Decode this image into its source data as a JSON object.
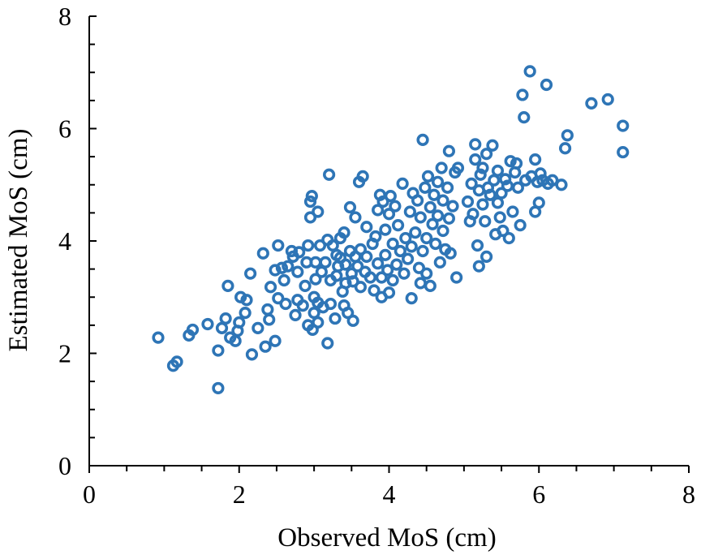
{
  "chart_data": {
    "type": "scatter",
    "title": "",
    "xlabel": "Observed MoS (cm)",
    "ylabel": "Estimated MoS (cm)",
    "xlim": [
      0,
      8
    ],
    "ylim": [
      0,
      8
    ],
    "xticks": [
      "0",
      "2",
      "4",
      "6",
      "8"
    ],
    "yticks": [
      "0",
      "2",
      "4",
      "6",
      "8"
    ],
    "grid": false,
    "legend": "none",
    "marker_color": "#2E75B6",
    "marker": "open-circle",
    "series": [
      {
        "points": [
          [
            0.92,
            2.28
          ],
          [
            1.12,
            1.78
          ],
          [
            1.17,
            1.85
          ],
          [
            1.33,
            2.32
          ],
          [
            1.38,
            2.42
          ],
          [
            1.58,
            2.52
          ],
          [
            1.72,
            1.38
          ],
          [
            1.72,
            2.05
          ],
          [
            1.77,
            2.45
          ],
          [
            1.82,
            2.62
          ],
          [
            1.85,
            3.2
          ],
          [
            1.88,
            2.28
          ],
          [
            1.95,
            2.22
          ],
          [
            1.98,
            2.4
          ],
          [
            2.0,
            2.55
          ],
          [
            2.02,
            3.0
          ],
          [
            2.08,
            2.72
          ],
          [
            2.1,
            2.95
          ],
          [
            2.15,
            3.42
          ],
          [
            2.17,
            1.98
          ],
          [
            2.25,
            2.45
          ],
          [
            2.32,
            3.78
          ],
          [
            2.35,
            2.12
          ],
          [
            2.38,
            2.78
          ],
          [
            2.4,
            2.6
          ],
          [
            2.42,
            3.18
          ],
          [
            2.48,
            2.22
          ],
          [
            2.48,
            3.48
          ],
          [
            2.52,
            2.98
          ],
          [
            2.52,
            3.92
          ],
          [
            2.57,
            3.52
          ],
          [
            2.6,
            3.3
          ],
          [
            2.62,
            2.88
          ],
          [
            2.65,
            3.55
          ],
          [
            2.7,
            3.82
          ],
          [
            2.72,
            3.72
          ],
          [
            2.75,
            2.68
          ],
          [
            2.78,
            2.95
          ],
          [
            2.78,
            3.45
          ],
          [
            2.8,
            3.8
          ],
          [
            2.85,
            2.85
          ],
          [
            2.88,
            3.2
          ],
          [
            2.9,
            3.62
          ],
          [
            2.92,
            2.5
          ],
          [
            2.92,
            3.92
          ],
          [
            2.95,
            4.42
          ],
          [
            2.95,
            4.7
          ],
          [
            2.97,
            4.8
          ],
          [
            2.98,
            2.42
          ],
          [
            3.0,
            2.72
          ],
          [
            3.0,
            3.0
          ],
          [
            3.02,
            3.62
          ],
          [
            3.02,
            3.32
          ],
          [
            3.05,
            4.52
          ],
          [
            3.05,
            2.55
          ],
          [
            3.05,
            2.9
          ],
          [
            3.08,
            3.92
          ],
          [
            3.1,
            3.45
          ],
          [
            3.12,
            2.82
          ],
          [
            3.15,
            3.62
          ],
          [
            3.18,
            4.02
          ],
          [
            3.18,
            2.18
          ],
          [
            3.2,
            5.18
          ],
          [
            3.22,
            3.3
          ],
          [
            3.22,
            2.88
          ],
          [
            3.25,
            3.92
          ],
          [
            3.28,
            2.62
          ],
          [
            3.3,
            3.75
          ],
          [
            3.3,
            3.38
          ],
          [
            3.32,
            3.55
          ],
          [
            3.35,
            4.05
          ],
          [
            3.35,
            3.7
          ],
          [
            3.38,
            3.1
          ],
          [
            3.4,
            2.85
          ],
          [
            3.4,
            4.15
          ],
          [
            3.42,
            3.25
          ],
          [
            3.42,
            3.58
          ],
          [
            3.45,
            2.72
          ],
          [
            3.48,
            3.82
          ],
          [
            3.48,
            4.6
          ],
          [
            3.5,
            3.42
          ],
          [
            3.52,
            2.58
          ],
          [
            3.52,
            3.28
          ],
          [
            3.55,
            4.42
          ],
          [
            3.55,
            3.72
          ],
          [
            3.58,
            3.55
          ],
          [
            3.6,
            5.05
          ],
          [
            3.62,
            3.85
          ],
          [
            3.62,
            3.18
          ],
          [
            3.65,
            5.15
          ],
          [
            3.68,
            3.45
          ],
          [
            3.7,
            3.72
          ],
          [
            3.7,
            4.25
          ],
          [
            3.75,
            3.35
          ],
          [
            3.78,
            3.95
          ],
          [
            3.8,
            3.12
          ],
          [
            3.82,
            4.08
          ],
          [
            3.85,
            3.6
          ],
          [
            3.85,
            4.55
          ],
          [
            3.88,
            4.82
          ],
          [
            3.9,
            3.0
          ],
          [
            3.9,
            3.35
          ],
          [
            3.92,
            4.7
          ],
          [
            3.95,
            3.75
          ],
          [
            3.95,
            4.2
          ],
          [
            3.98,
            3.48
          ],
          [
            4.0,
            4.48
          ],
          [
            4.0,
            3.08
          ],
          [
            4.02,
            4.8
          ],
          [
            4.05,
            3.95
          ],
          [
            4.05,
            3.3
          ],
          [
            4.08,
            4.62
          ],
          [
            4.1,
            3.58
          ],
          [
            4.12,
            4.28
          ],
          [
            4.15,
            3.82
          ],
          [
            4.18,
            5.02
          ],
          [
            4.2,
            3.42
          ],
          [
            4.22,
            4.05
          ],
          [
            4.25,
            3.68
          ],
          [
            4.28,
            4.52
          ],
          [
            4.3,
            2.98
          ],
          [
            4.3,
            3.9
          ],
          [
            4.32,
            4.85
          ],
          [
            4.35,
            4.15
          ],
          [
            4.38,
            4.72
          ],
          [
            4.4,
            3.52
          ],
          [
            4.42,
            4.42
          ],
          [
            4.42,
            3.25
          ],
          [
            4.45,
            5.8
          ],
          [
            4.45,
            3.82
          ],
          [
            4.48,
            4.95
          ],
          [
            4.5,
            4.05
          ],
          [
            4.5,
            3.42
          ],
          [
            4.52,
            5.15
          ],
          [
            4.55,
            4.6
          ],
          [
            4.55,
            3.2
          ],
          [
            4.58,
            4.3
          ],
          [
            4.6,
            4.82
          ],
          [
            4.62,
            3.95
          ],
          [
            4.65,
            4.45
          ],
          [
            4.65,
            5.05
          ],
          [
            4.68,
            3.62
          ],
          [
            4.7,
            5.3
          ],
          [
            4.72,
            4.18
          ],
          [
            4.72,
            4.72
          ],
          [
            4.75,
            3.85
          ],
          [
            4.78,
            4.95
          ],
          [
            4.8,
            4.4
          ],
          [
            4.8,
            5.6
          ],
          [
            4.82,
            3.78
          ],
          [
            4.85,
            4.62
          ],
          [
            4.88,
            5.22
          ],
          [
            4.9,
            3.35
          ],
          [
            4.92,
            5.3
          ],
          [
            5.05,
            4.7
          ],
          [
            5.08,
            4.35
          ],
          [
            5.1,
            5.02
          ],
          [
            5.12,
            4.48
          ],
          [
            5.15,
            5.72
          ],
          [
            5.15,
            5.45
          ],
          [
            5.18,
            3.92
          ],
          [
            5.2,
            4.9
          ],
          [
            5.2,
            3.55
          ],
          [
            5.22,
            5.18
          ],
          [
            5.25,
            4.65
          ],
          [
            5.25,
            5.3
          ],
          [
            5.28,
            4.35
          ],
          [
            5.3,
            5.55
          ],
          [
            5.3,
            3.72
          ],
          [
            5.32,
            4.95
          ],
          [
            5.35,
            4.82
          ],
          [
            5.38,
            5.7
          ],
          [
            5.4,
            5.08
          ],
          [
            5.42,
            4.12
          ],
          [
            5.45,
            4.68
          ],
          [
            5.45,
            5.25
          ],
          [
            5.48,
            4.42
          ],
          [
            5.5,
            4.85
          ],
          [
            5.52,
            4.18
          ],
          [
            5.55,
            5.1
          ],
          [
            5.58,
            4.98
          ],
          [
            5.6,
            4.05
          ],
          [
            5.62,
            5.42
          ],
          [
            5.65,
            4.52
          ],
          [
            5.68,
            5.22
          ],
          [
            5.7,
            5.38
          ],
          [
            5.72,
            4.95
          ],
          [
            5.75,
            4.28
          ],
          [
            5.78,
            6.6
          ],
          [
            5.8,
            6.2
          ],
          [
            5.82,
            5.08
          ],
          [
            5.88,
            7.02
          ],
          [
            5.9,
            5.15
          ],
          [
            5.95,
            4.52
          ],
          [
            5.95,
            5.45
          ],
          [
            5.98,
            5.05
          ],
          [
            6.0,
            4.68
          ],
          [
            6.02,
            5.2
          ],
          [
            6.05,
            5.08
          ],
          [
            6.1,
            6.78
          ],
          [
            6.12,
            5.02
          ],
          [
            6.18,
            5.08
          ],
          [
            6.3,
            5.0
          ],
          [
            6.35,
            5.65
          ],
          [
            6.38,
            5.88
          ],
          [
            6.7,
            6.45
          ],
          [
            6.92,
            6.52
          ],
          [
            7.12,
            6.05
          ],
          [
            7.12,
            5.58
          ]
        ]
      }
    ]
  }
}
